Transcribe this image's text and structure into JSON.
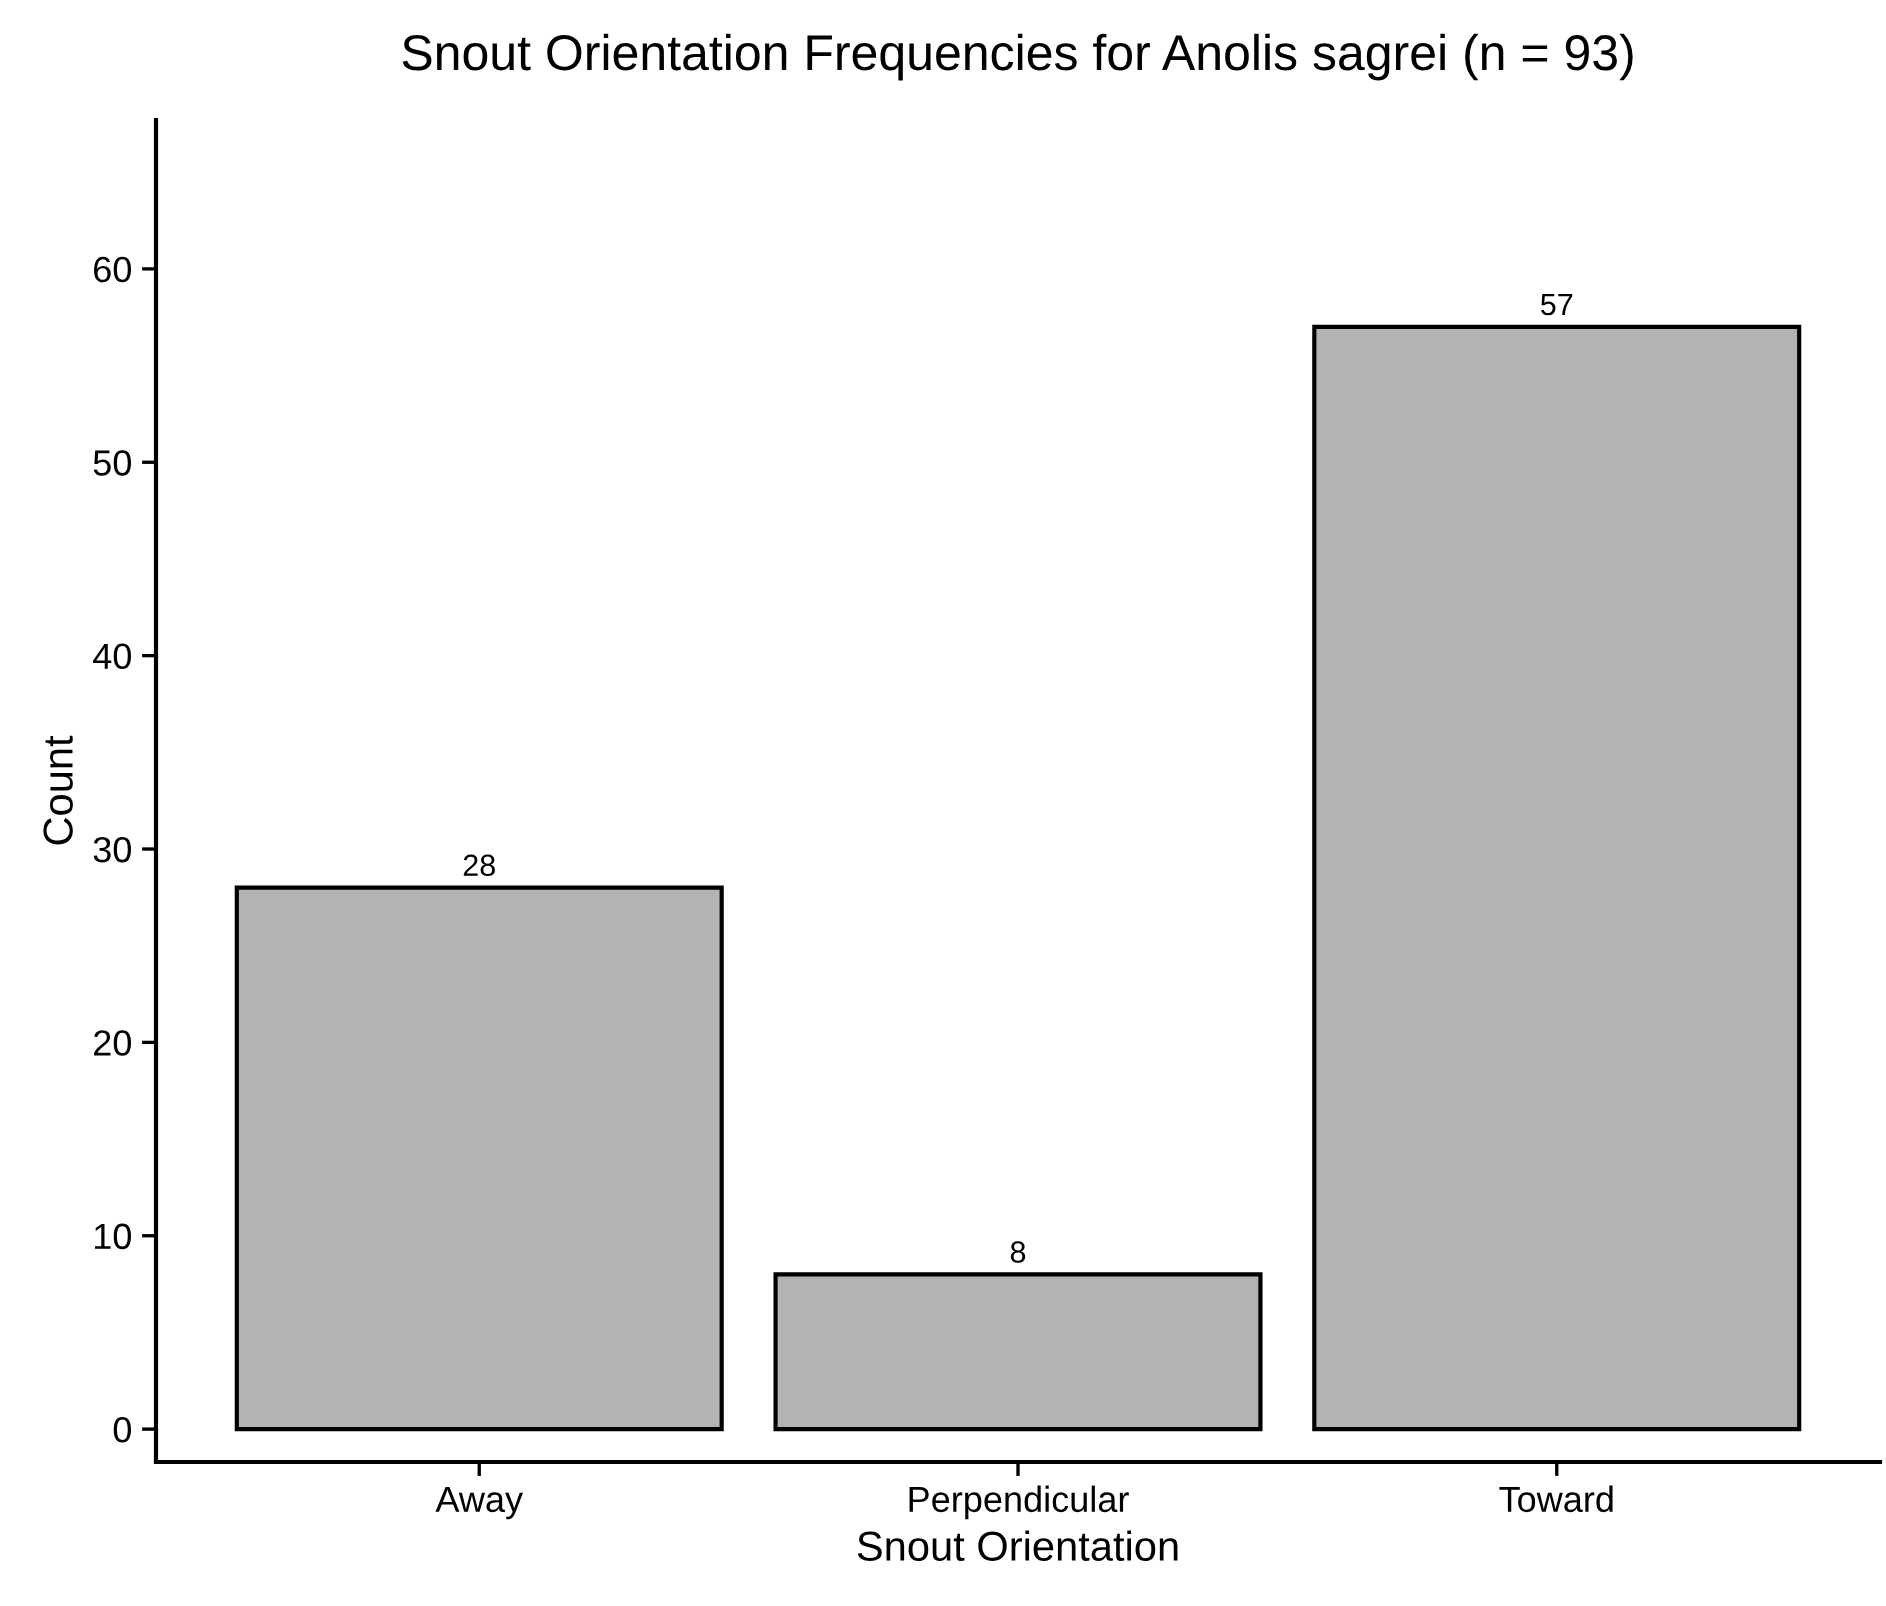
{
  "chart_data": {
    "type": "bar",
    "title": "Snout Orientation Frequencies for Anolis sagrei (n = 93)",
    "xlabel": "Snout Orientation",
    "ylabel": "Count",
    "categories": [
      "Away",
      "Perpendicular",
      "Toward"
    ],
    "values": [
      28,
      8,
      57
    ],
    "color": "#b3b3b3",
    "ylim": [
      -1.7,
      67.7
    ],
    "yticks": [
      0,
      10,
      20,
      30,
      40,
      50,
      60
    ],
    "grid": false,
    "data_labels": true
  }
}
